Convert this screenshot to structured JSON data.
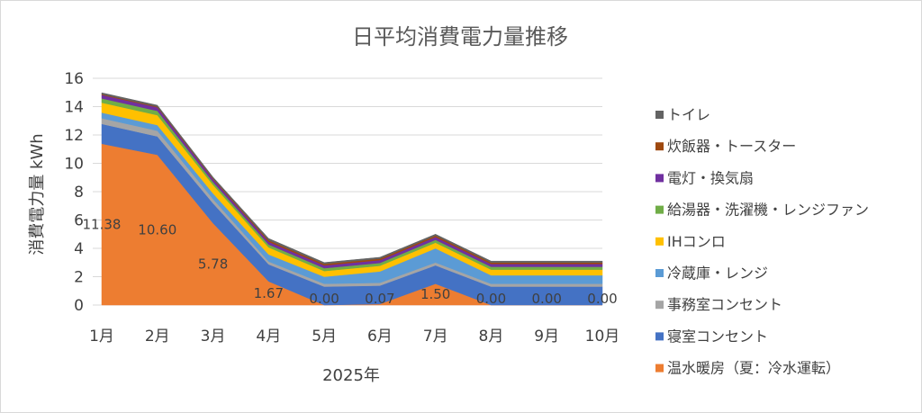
{
  "chart_data": {
    "type": "area",
    "stacked": true,
    "title": "日平均消費電力量推移",
    "xlabel": "2025年",
    "ylabel": "消費電力量 kWh",
    "ylim": [
      0,
      16
    ],
    "yticks": [
      0,
      2,
      4,
      6,
      8,
      10,
      12,
      14,
      16
    ],
    "grid": true,
    "legend_position": "right",
    "categories": [
      "1月",
      "2月",
      "3月",
      "4月",
      "5月",
      "6月",
      "7月",
      "8月",
      "9月",
      "10月"
    ],
    "series": [
      {
        "name": "温水暖房（夏：冷水運転）",
        "color": "#ED7D31",
        "values": [
          11.38,
          10.6,
          5.78,
          1.67,
          0.0,
          0.07,
          1.5,
          0.0,
          0.0,
          0.0
        ]
      },
      {
        "name": "寝室コンセント",
        "color": "#4472C4",
        "values": [
          1.4,
          1.3,
          1.4,
          1.2,
          1.3,
          1.3,
          1.3,
          1.3,
          1.3,
          1.3
        ]
      },
      {
        "name": "事務室コンセント",
        "color": "#A5A5A5",
        "values": [
          0.4,
          0.4,
          0.3,
          0.2,
          0.2,
          0.2,
          0.2,
          0.2,
          0.2,
          0.2
        ]
      },
      {
        "name": "冷蔵庫・レンジ",
        "color": "#5B9BD5",
        "values": [
          0.4,
          0.4,
          0.4,
          0.5,
          0.5,
          0.8,
          1.0,
          0.6,
          0.6,
          0.6
        ]
      },
      {
        "name": "IHコンロ",
        "color": "#FFC000",
        "values": [
          0.7,
          0.7,
          0.6,
          0.5,
          0.4,
          0.4,
          0.4,
          0.4,
          0.4,
          0.4
        ]
      },
      {
        "name": "給湯器・洗濯機・レンジファン",
        "color": "#70AD47",
        "values": [
          0.3,
          0.3,
          0.2,
          0.2,
          0.2,
          0.2,
          0.2,
          0.2,
          0.2,
          0.2
        ]
      },
      {
        "name": "電灯・換気扇",
        "color": "#7030A0",
        "values": [
          0.25,
          0.25,
          0.2,
          0.2,
          0.2,
          0.2,
          0.2,
          0.2,
          0.2,
          0.2
        ]
      },
      {
        "name": "炊飯器・トースター",
        "color": "#9E480E",
        "values": [
          0.05,
          0.05,
          0.05,
          0.1,
          0.1,
          0.1,
          0.1,
          0.1,
          0.1,
          0.1
        ]
      },
      {
        "name": "トイレ",
        "color": "#636363",
        "values": [
          0.1,
          0.1,
          0.1,
          0.13,
          0.1,
          0.1,
          0.1,
          0.1,
          0.1,
          0.1
        ]
      }
    ],
    "data_labels": [
      "11.38",
      "10.60",
      "5.78",
      "1.67",
      "0.00",
      "0.07",
      "1.50",
      "0.00",
      "0.00",
      "0.00"
    ]
  }
}
